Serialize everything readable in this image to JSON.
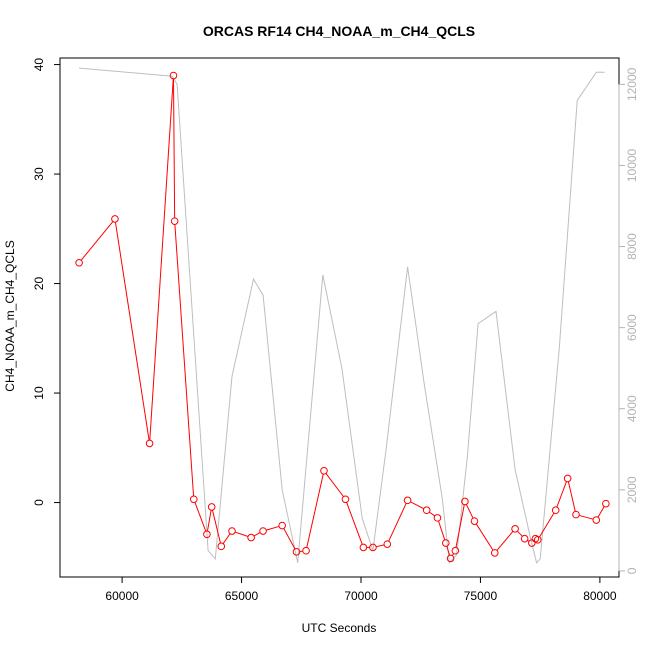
{
  "chart_data": {
    "type": "line",
    "title": "ORCAS RF14 CH4_NOAA_m_CH4_QCLS",
    "xlabel": "UTC Seconds",
    "ylabel": "CH4_NOAA_m_CH4_QCLS",
    "xlim": [
      57400,
      80800
    ],
    "ylim": [
      -6.8,
      40.6
    ],
    "y2lim": [
      -150,
      12650
    ],
    "x_ticks": [
      60000,
      65000,
      70000,
      75000,
      80000
    ],
    "y_ticks": [
      0,
      10,
      20,
      30,
      40
    ],
    "y2_ticks": [
      0,
      2000,
      4000,
      6000,
      8000,
      10000,
      12000
    ],
    "grid": false,
    "series": [
      {
        "axis": "left",
        "color": "#ff0000",
        "marker": "open-circle",
        "x": [
          58200,
          59700,
          61150,
          62150,
          62200,
          63000,
          63550,
          63750,
          64150,
          64600,
          65400,
          65900,
          66700,
          67300,
          67700,
          68450,
          69350,
          70100,
          70500,
          71100,
          71950,
          72750,
          73200,
          73550,
          73750,
          73950,
          74350,
          74750,
          75600,
          76450,
          76850,
          77150,
          77300,
          77400,
          78150,
          78650,
          79000,
          79850,
          80250
        ],
        "y": [
          21.9,
          25.9,
          5.4,
          39.0,
          25.7,
          0.3,
          -2.9,
          -0.4,
          -4.0,
          -2.6,
          -3.2,
          -2.6,
          -2.1,
          -4.5,
          -4.4,
          2.9,
          0.3,
          -4.1,
          -4.1,
          -3.8,
          0.2,
          -0.7,
          -1.4,
          -3.7,
          -5.1,
          -4.4,
          0.1,
          -1.7,
          -4.6,
          -2.4,
          -3.3,
          -3.7,
          -3.3,
          -3.4,
          -0.7,
          2.2,
          -1.1,
          -1.6,
          -0.1
        ]
      },
      {
        "axis": "right",
        "color": "#bebebe",
        "marker": "none",
        "x": [
          58200,
          62100,
          62300,
          63600,
          63900,
          64600,
          65500,
          65900,
          66700,
          67350,
          68400,
          69200,
          70050,
          70500,
          71050,
          71950,
          72650,
          73400,
          73700,
          74000,
          74450,
          74900,
          75650,
          76450,
          77100,
          77350,
          77500,
          78300,
          79050,
          79850,
          80200
        ],
        "y": [
          12400,
          12200,
          12000,
          500,
          300,
          4800,
          7200,
          6800,
          2000,
          200,
          7300,
          5000,
          1300,
          500,
          3000,
          7500,
          4600,
          1800,
          200,
          400,
          2800,
          6100,
          6400,
          2500,
          800,
          200,
          300,
          5500,
          11600,
          12300,
          12300
        ]
      }
    ]
  }
}
